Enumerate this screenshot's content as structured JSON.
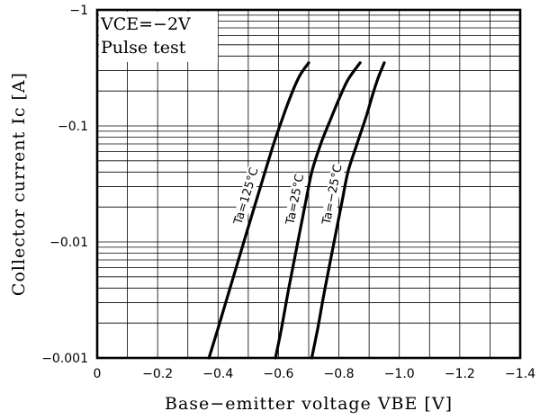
{
  "chart_data": {
    "type": "line",
    "xlabel": "Base−emitter voltage VBE [V]",
    "ylabel": "Collector current Ic [A]",
    "xlim": [
      0,
      -1.4
    ],
    "ylim": [
      -0.001,
      -1
    ],
    "y_scale": "log",
    "grid": true,
    "x_ticks": [
      "0",
      "−0.2",
      "−0.4",
      "−0.6",
      "−0.8",
      "−1.0",
      "−1.2",
      "−1.4"
    ],
    "y_ticks": [
      "−1",
      "−0.1",
      "−0.01",
      "−0.001"
    ],
    "annotations": [
      "VCE=−2V",
      "Pulse test"
    ],
    "series": [
      {
        "name": "Ta=125°C",
        "x": [
          -0.37,
          -0.4,
          -0.43,
          -0.46,
          -0.49,
          -0.52,
          -0.55,
          -0.58,
          -0.61,
          -0.64,
          -0.67,
          -0.7
        ],
        "y": [
          -0.001,
          -0.0018,
          -0.0033,
          -0.006,
          -0.011,
          -0.02,
          -0.036,
          -0.065,
          -0.11,
          -0.18,
          -0.27,
          -0.35
        ]
      },
      {
        "name": "Ta=25°C",
        "x": [
          -0.59,
          -0.61,
          -0.63,
          -0.65,
          -0.67,
          -0.69,
          -0.71,
          -0.74,
          -0.77,
          -0.8,
          -0.83,
          -0.87
        ],
        "y": [
          -0.001,
          -0.0018,
          -0.0035,
          -0.0065,
          -0.012,
          -0.022,
          -0.04,
          -0.07,
          -0.11,
          -0.17,
          -0.25,
          -0.35
        ]
      },
      {
        "name": "Ta=−25°C",
        "x": [
          -0.71,
          -0.73,
          -0.75,
          -0.77,
          -0.79,
          -0.81,
          -0.83,
          -0.86,
          -0.89,
          -0.91,
          -0.93,
          -0.95
        ],
        "y": [
          -0.001,
          -0.0018,
          -0.0035,
          -0.0065,
          -0.012,
          -0.022,
          -0.04,
          -0.07,
          -0.12,
          -0.18,
          -0.26,
          -0.35
        ]
      }
    ]
  }
}
